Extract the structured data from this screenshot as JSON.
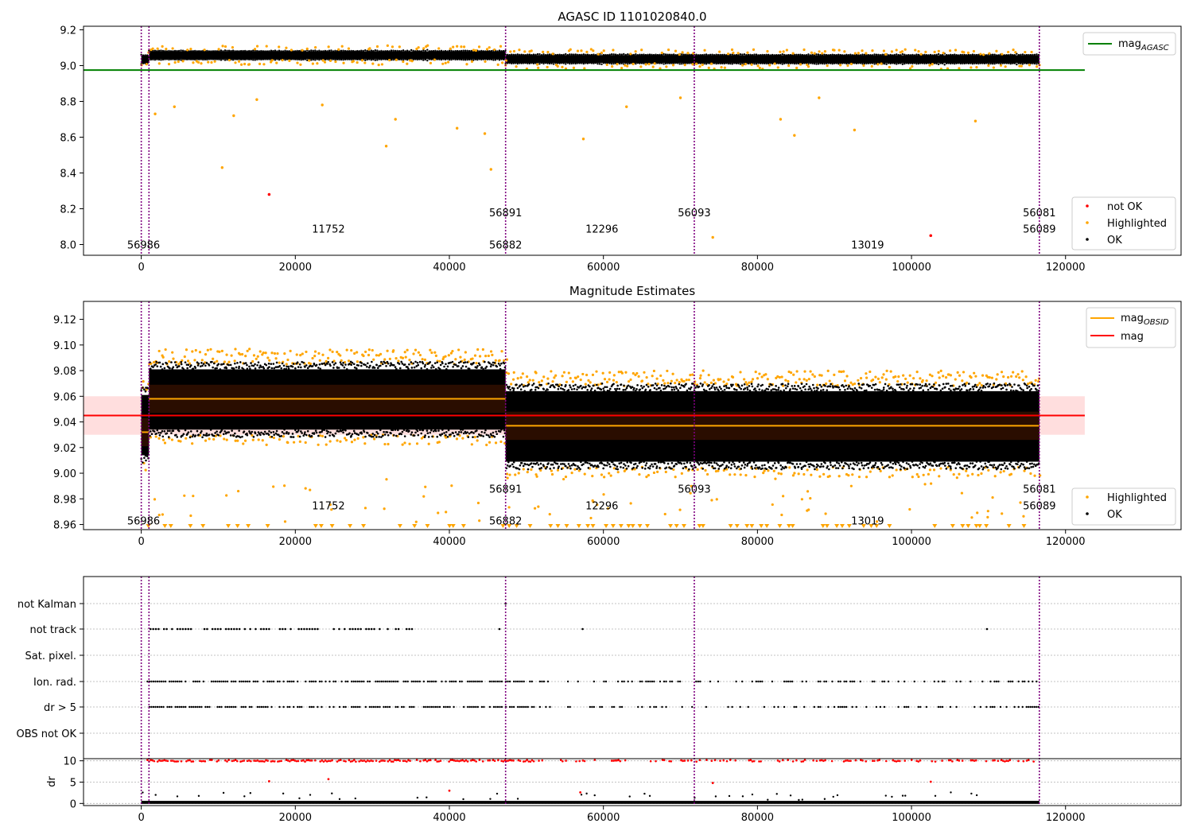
{
  "chart_data": [
    {
      "type": "scatter",
      "title": "AGASC ID 1101020840.0",
      "xlim": [
        -7500,
        135000
      ],
      "ylim": [
        7.94,
        9.22
      ],
      "xticks": [
        0,
        20000,
        40000,
        60000,
        80000,
        100000,
        120000
      ],
      "xtick_labels": [
        "0",
        "20000",
        "40000",
        "60000",
        "80000",
        "100000",
        "120000"
      ],
      "yticks": [
        8.0,
        8.2,
        8.4,
        8.6,
        8.8,
        9.0,
        9.2
      ],
      "ytick_labels": [
        "8.0",
        "8.2",
        "8.4",
        "8.6",
        "8.8",
        "9.0",
        "9.2"
      ],
      "mag_agasc": 8.975,
      "mag_agasc_xrange": [
        -7500,
        122500
      ],
      "obsid_segments": [
        {
          "x0": 0,
          "x1": 1000,
          "mean": 9.035
        },
        {
          "x0": 1000,
          "x1": 47300,
          "mean": 9.058
        },
        {
          "x0": 47300,
          "x1": 71800,
          "mean": 9.037
        },
        {
          "x0": 71800,
          "x1": 116600,
          "mean": 9.036
        }
      ],
      "annotations": [
        {
          "text": "56986",
          "x": 300,
          "y": 8.0
        },
        {
          "text": "11752",
          "x": 24300,
          "y": 8.09
        },
        {
          "text": "56891",
          "x": 47300,
          "y": 8.18
        },
        {
          "text": "56882",
          "x": 47300,
          "y": 8.0
        },
        {
          "text": "12296",
          "x": 59800,
          "y": 8.09
        },
        {
          "text": "56093",
          "x": 71800,
          "y": 8.18
        },
        {
          "text": "13019",
          "x": 94300,
          "y": 8.0
        },
        {
          "text": "56081",
          "x": 116600,
          "y": 8.18
        },
        {
          "text": "56089",
          "x": 116600,
          "y": 8.09
        }
      ],
      "outliers_orange": [
        [
          10500,
          8.43
        ],
        [
          31800,
          8.55
        ],
        [
          45400,
          8.42
        ],
        [
          57400,
          8.59
        ],
        [
          84800,
          8.61
        ],
        [
          92600,
          8.64
        ],
        [
          108300,
          8.69
        ],
        [
          74200,
          8.04
        ],
        [
          1800,
          8.73
        ],
        [
          33000,
          8.7
        ],
        [
          12000,
          8.72
        ],
        [
          4300,
          8.77
        ],
        [
          23500,
          8.78
        ],
        [
          15000,
          8.81
        ],
        [
          41000,
          8.65
        ],
        [
          44600,
          8.62
        ],
        [
          63000,
          8.77
        ],
        [
          70000,
          8.82
        ],
        [
          83000,
          8.7
        ],
        [
          88000,
          8.82
        ]
      ],
      "not_ok_points": [
        [
          16600,
          8.28
        ],
        [
          102500,
          8.05
        ]
      ],
      "legend": {
        "position": "top-right",
        "entries": [
          "mag",
          "AGASC"
        ]
      },
      "legend2": {
        "position": "bottom-right",
        "entries": [
          "not OK",
          "Highlighted",
          "OK"
        ]
      },
      "colors": {
        "ok": "#000000",
        "highlighted": "#ffa500",
        "not_ok": "#ff0000",
        "agasc_line": "#008000",
        "obs_lines": "#800080"
      }
    },
    {
      "type": "scatter",
      "title": "Magnitude Estimates",
      "xlim": [
        -7500,
        135000
      ],
      "ylim": [
        8.956,
        9.134
      ],
      "xticks": [
        0,
        20000,
        40000,
        60000,
        80000,
        100000,
        120000
      ],
      "xtick_labels": [
        "0",
        "20000",
        "40000",
        "60000",
        "80000",
        "100000",
        "120000"
      ],
      "yticks": [
        8.96,
        8.98,
        9.0,
        9.02,
        9.04,
        9.06,
        9.08,
        9.1,
        9.12
      ],
      "ytick_labels": [
        "8.96",
        "8.98",
        "9.00",
        "9.02",
        "9.04",
        "9.06",
        "9.08",
        "9.10",
        "9.12"
      ],
      "mag": 9.045,
      "mag_band": [
        9.03,
        9.06
      ],
      "mag_xrange": [
        -7500,
        122500
      ],
      "obsid_segments": [
        {
          "x0": 0,
          "x1": 1000,
          "mean": 9.032,
          "lo": 9.01,
          "hi": 9.065
        },
        {
          "x0": 1000,
          "x1": 47300,
          "mean": 9.058,
          "lo": 9.03,
          "hi": 9.085
        },
        {
          "x0": 47300,
          "x1": 71800,
          "mean": 9.037,
          "lo": 9.005,
          "hi": 9.068
        },
        {
          "x0": 71800,
          "x1": 116600,
          "mean": 9.037,
          "lo": 9.005,
          "hi": 9.068
        }
      ],
      "annotations": [
        {
          "text": "56986",
          "x": 300,
          "y": 8.963
        },
        {
          "text": "11752",
          "x": 24300,
          "y": 8.975
        },
        {
          "text": "56891",
          "x": 47300,
          "y": 8.988
        },
        {
          "text": "56882",
          "x": 47300,
          "y": 8.963
        },
        {
          "text": "12296",
          "x": 59800,
          "y": 8.975
        },
        {
          "text": "56093",
          "x": 71800,
          "y": 8.988
        },
        {
          "text": "13019",
          "x": 94300,
          "y": 8.963
        },
        {
          "text": "56081",
          "x": 116600,
          "y": 8.988
        },
        {
          "text": "56089",
          "x": 116600,
          "y": 8.975
        }
      ],
      "legend": {
        "position": "top-right",
        "entries": [
          "mag",
          "OBSID",
          "mag"
        ]
      },
      "legend2": {
        "position": "bottom-right",
        "entries": [
          "Highlighted",
          "OK"
        ]
      }
    },
    {
      "type": "scatter",
      "xlim": [
        -7500,
        135000
      ],
      "xticks": [
        0,
        20000,
        40000,
        60000,
        80000,
        100000,
        120000
      ],
      "xtick_labels": [
        "0",
        "20000",
        "40000",
        "60000",
        "80000",
        "100000",
        "120000"
      ],
      "flag_rows": [
        "not Kalman",
        "not track",
        "Sat. pixel.",
        "Ion. rad.",
        "dr > 5",
        "OBS not OK"
      ],
      "dr_ylabel": "dr",
      "dr_ylim": [
        -0.5,
        10.5
      ],
      "dr_yticks": [
        0,
        5,
        10
      ],
      "dr_ytick_labels": [
        "0",
        "5",
        "10"
      ]
    }
  ],
  "observation_lines_x": [
    0,
    1000,
    47300,
    71800,
    116600
  ]
}
